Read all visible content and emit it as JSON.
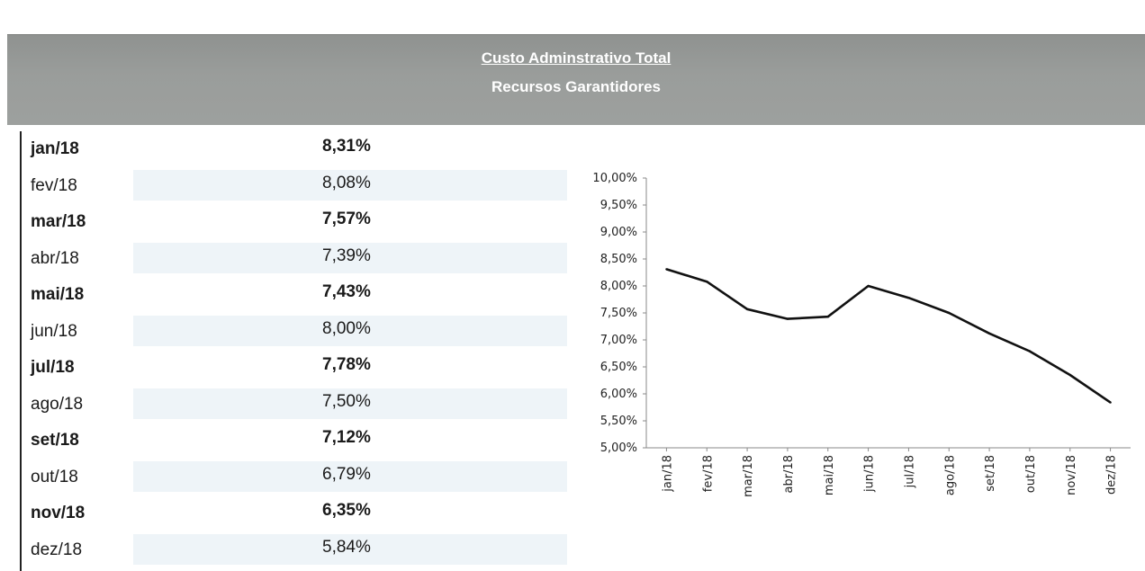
{
  "header": {
    "title": "Custo Adminstrativo Total",
    "subtitle": "Recursos Garantidores"
  },
  "table": {
    "rows": [
      {
        "month": "jan/18",
        "value": "8,31%",
        "bold": true
      },
      {
        "month": "fev/18",
        "value": "8,08%",
        "bold": false
      },
      {
        "month": "mar/18",
        "value": "7,57%",
        "bold": true
      },
      {
        "month": "abr/18",
        "value": "7,39%",
        "bold": false
      },
      {
        "month": "mai/18",
        "value": "7,43%",
        "bold": true
      },
      {
        "month": "jun/18",
        "value": "8,00%",
        "bold": false
      },
      {
        "month": "jul/18",
        "value": "7,78%",
        "bold": true
      },
      {
        "month": "ago/18",
        "value": "7,50%",
        "bold": false
      },
      {
        "month": "set/18",
        "value": "7,12%",
        "bold": true
      },
      {
        "month": "out/18",
        "value": "6,79%",
        "bold": false
      },
      {
        "month": "nov/18",
        "value": "6,35%",
        "bold": true
      },
      {
        "month": "dez/18",
        "value": "5,84%",
        "bold": false
      }
    ]
  },
  "chart_data": {
    "type": "line",
    "categories": [
      "jan/18",
      "fev/18",
      "mar/18",
      "abr/18",
      "mai/18",
      "jun/18",
      "jul/18",
      "ago/18",
      "set/18",
      "out/18",
      "nov/18",
      "dez/18"
    ],
    "series": [
      {
        "values": [
          8.31,
          8.08,
          7.57,
          7.39,
          7.43,
          8.0,
          7.78,
          7.5,
          7.12,
          6.79,
          6.35,
          5.84
        ]
      }
    ],
    "yticks": [
      "5,00%",
      "5,50%",
      "6,00%",
      "6,50%",
      "7,00%",
      "7,50%",
      "8,00%",
      "8,50%",
      "9,00%",
      "9,50%",
      "10,00%"
    ],
    "ylim": [
      5,
      10
    ],
    "title": "",
    "xlabel": "",
    "ylabel": "",
    "grid": false,
    "line_color": "#111111"
  }
}
